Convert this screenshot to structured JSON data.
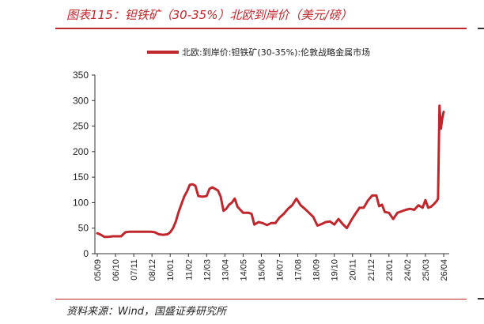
{
  "header": {
    "figure_title": "图表115：钽铁矿（30-35%）北欧到岸价（美元/磅）"
  },
  "footer": {
    "source": "资料来源：Wind，国盛证券研究所"
  },
  "chart_data": {
    "type": "line",
    "title": "",
    "xlabel": "",
    "ylabel": "",
    "ylim": [
      0,
      350
    ],
    "yticks": [
      0,
      50,
      100,
      150,
      200,
      250,
      300,
      350
    ],
    "xticks": [
      "05/09",
      "06/10",
      "07/11",
      "08/12",
      "10/01",
      "11/02",
      "12/03",
      "13/04",
      "14/05",
      "15/06",
      "16/07",
      "17/08",
      "18/09",
      "19/10",
      "20/11",
      "21/12",
      "23/01",
      "24/02",
      "25/03",
      "26/04"
    ],
    "legend": "top-center",
    "grid": false,
    "series": [
      {
        "name": "北欧:到岸价:钽铁矿(30-35%):伦敦战略金属市场",
        "color": "#c0272d",
        "x": [
          "2005-09",
          "2005-11",
          "2006-02",
          "2006-05",
          "2006-08",
          "2006-11",
          "2007-02",
          "2007-05",
          "2007-08",
          "2007-11",
          "2008-02",
          "2008-05",
          "2008-08",
          "2008-11",
          "2009-02",
          "2009-05",
          "2009-08",
          "2009-11",
          "2010-01",
          "2010-03",
          "2010-05",
          "2010-07",
          "2010-09",
          "2010-11",
          "2011-01",
          "2011-03",
          "2011-05",
          "2011-07",
          "2011-09",
          "2011-11",
          "2012-01",
          "2012-03",
          "2012-05",
          "2012-07",
          "2012-09",
          "2012-11",
          "2013-01",
          "2013-03",
          "2013-05",
          "2013-07",
          "2013-09",
          "2013-11",
          "2014-01",
          "2014-03",
          "2014-05",
          "2014-07",
          "2014-09",
          "2014-11",
          "2015-01",
          "2015-04",
          "2015-07",
          "2015-10",
          "2016-01",
          "2016-04",
          "2016-07",
          "2016-10",
          "2017-01",
          "2017-04",
          "2017-07",
          "2017-10",
          "2018-01",
          "2018-04",
          "2018-07",
          "2018-10",
          "2019-01",
          "2019-04",
          "2019-07",
          "2019-10",
          "2020-01",
          "2020-04",
          "2020-07",
          "2020-10",
          "2021-01",
          "2021-04",
          "2021-07",
          "2021-10",
          "2022-01",
          "2022-04",
          "2022-06",
          "2022-08",
          "2022-10",
          "2023-01",
          "2023-04",
          "2023-07",
          "2023-10",
          "2024-01",
          "2024-04",
          "2024-07",
          "2024-10",
          "2025-01",
          "2025-03",
          "2025-05",
          "2025-07",
          "2025-09",
          "2025-10",
          "2025-11",
          "2025-12",
          "2026-01",
          "2026-02",
          "2026-03",
          "2026-04"
        ],
        "values": [
          40,
          38,
          33,
          33,
          34,
          34,
          34,
          42,
          43,
          43,
          43,
          43,
          43,
          43,
          42,
          38,
          37,
          38,
          42,
          50,
          63,
          82,
          97,
          112,
          122,
          135,
          136,
          133,
          113,
          112,
          112,
          113,
          127,
          130,
          127,
          124,
          112,
          84,
          88,
          96,
          100,
          108,
          92,
          86,
          80,
          80,
          80,
          78,
          57,
          62,
          60,
          56,
          60,
          60,
          71,
          78,
          88,
          95,
          108,
          95,
          88,
          80,
          72,
          55,
          58,
          62,
          63,
          57,
          68,
          58,
          50,
          65,
          78,
          90,
          90,
          104,
          114,
          114,
          93,
          96,
          82,
          80,
          68,
          80,
          83,
          86,
          88,
          86,
          95,
          90,
          105,
          90,
          92,
          97,
          100,
          103,
          108,
          290,
          245,
          265,
          278
        ]
      }
    ]
  }
}
